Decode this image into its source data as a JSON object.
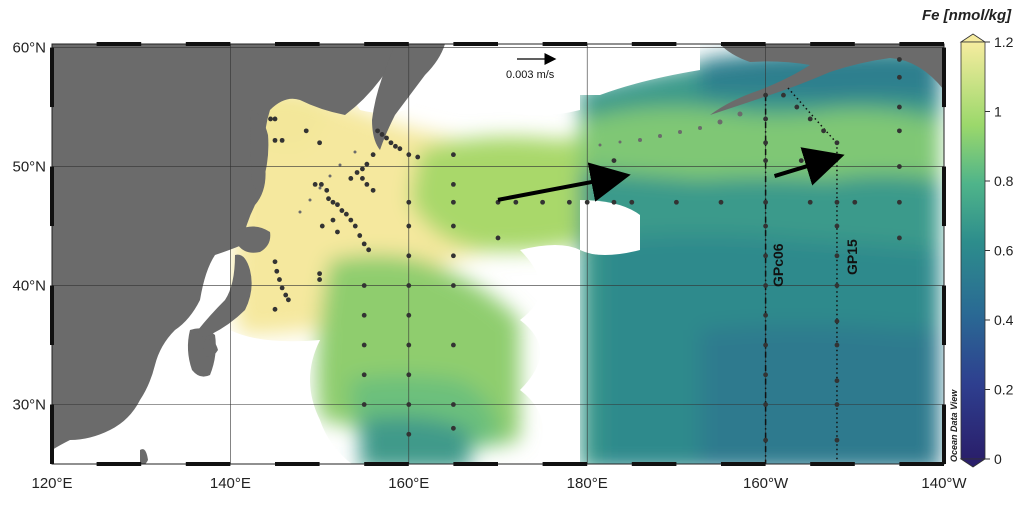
{
  "colors": {
    "land": "#6b6b6b",
    "ocean_blank": "#ffffff",
    "high": "#f5e89e",
    "mid_high": "#a6d868",
    "mid": "#4fb48a",
    "mid_low": "#2f8a8c",
    "low": "#2a5b8e",
    "station": "#333333"
  },
  "map": {
    "lon_ticks": [
      {
        "value": 120,
        "label": "120°E"
      },
      {
        "value": 140,
        "label": "140°E"
      },
      {
        "value": 160,
        "label": "160°E"
      },
      {
        "value": 180,
        "label": "180°E"
      },
      {
        "value": 200,
        "label": "160°W"
      },
      {
        "value": 220,
        "label": "140°W"
      }
    ],
    "lat_ticks": [
      {
        "value": 30,
        "label": "30°N"
      },
      {
        "value": 40,
        "label": "40°N"
      },
      {
        "value": 50,
        "label": "50°N"
      },
      {
        "value": 60,
        "label": "60°N"
      }
    ],
    "scale_arrow_label": "0.003 m/s",
    "watermark": "Ocean Data View"
  },
  "sections": [
    {
      "name": "GPc06",
      "lon": 200
    },
    {
      "name": "GP15",
      "lon": 208
    }
  ],
  "colorbar": {
    "title": "Fe [nmol/kg]",
    "ticks": [
      {
        "value": 0,
        "label": "0"
      },
      {
        "value": 0.2,
        "label": "0.2"
      },
      {
        "value": 0.4,
        "label": "0.4"
      },
      {
        "value": 0.6,
        "label": "0.6"
      },
      {
        "value": 0.8,
        "label": "0.8"
      },
      {
        "value": 1,
        "label": "1"
      },
      {
        "value": 1.2,
        "label": "1.2"
      }
    ],
    "min": 0,
    "max": 1.2
  },
  "arrows": [
    {
      "lon0": 170,
      "lat0": 47.2,
      "lon1": 184,
      "lat1": 49.2
    },
    {
      "lon0": 201,
      "lat0": 49.2,
      "lon1": 208,
      "lat1": 50.8
    }
  ],
  "stations": [
    [
      144.5,
      54
    ],
    [
      145,
      54
    ],
    [
      145,
      52.2
    ],
    [
      145.8,
      52.2
    ],
    [
      148.5,
      53
    ],
    [
      150,
      52
    ],
    [
      149.5,
      48.5
    ],
    [
      150.2,
      48.5
    ],
    [
      150.8,
      48
    ],
    [
      151,
      47.3
    ],
    [
      151.5,
      47
    ],
    [
      152,
      46.8
    ],
    [
      152.5,
      46.3
    ],
    [
      153,
      46
    ],
    [
      153.5,
      45.5
    ],
    [
      154,
      45
    ],
    [
      154.5,
      44.2
    ],
    [
      155,
      43.5
    ],
    [
      155.5,
      43
    ],
    [
      153.5,
      49
    ],
    [
      154.2,
      49.5
    ],
    [
      154.8,
      49
    ],
    [
      155.3,
      48.5
    ],
    [
      156,
      48
    ],
    [
      150.3,
      45
    ],
    [
      151.5,
      45.5
    ],
    [
      152,
      44.5
    ],
    [
      156.5,
      53
    ],
    [
      157,
      52.7
    ],
    [
      157.5,
      52.4
    ],
    [
      158,
      52
    ],
    [
      158.5,
      51.7
    ],
    [
      159,
      51.5
    ],
    [
      160,
      51
    ],
    [
      161,
      50.8
    ],
    [
      156,
      51
    ],
    [
      155.3,
      50.2
    ],
    [
      154.8,
      49.8
    ],
    [
      145,
      42
    ],
    [
      145.2,
      41.2
    ],
    [
      145.5,
      40.5
    ],
    [
      145.8,
      39.8
    ],
    [
      146.2,
      39.2
    ],
    [
      146.5,
      38.8
    ],
    [
      150,
      41
    ],
    [
      150,
      40.5
    ],
    [
      145,
      38
    ],
    [
      160,
      47
    ],
    [
      160,
      45
    ],
    [
      160,
      42.5
    ],
    [
      160,
      40
    ],
    [
      160,
      37.5
    ],
    [
      160,
      35
    ],
    [
      160,
      32.5
    ],
    [
      160,
      30
    ],
    [
      160,
      27.5
    ],
    [
      155,
      40
    ],
    [
      155,
      37.5
    ],
    [
      155,
      35
    ],
    [
      155,
      32.5
    ],
    [
      155,
      30
    ],
    [
      165,
      51
    ],
    [
      165,
      48.5
    ],
    [
      165,
      47
    ],
    [
      165,
      45
    ],
    [
      165,
      42.5
    ],
    [
      165,
      40
    ],
    [
      165,
      35
    ],
    [
      165,
      30
    ],
    [
      165,
      28
    ],
    [
      170,
      47
    ],
    [
      172,
      47
    ],
    [
      175,
      47
    ],
    [
      178,
      47
    ],
    [
      180,
      47
    ],
    [
      183,
      47
    ],
    [
      185,
      47
    ],
    [
      190,
      47
    ],
    [
      195,
      47
    ],
    [
      200,
      47
    ],
    [
      205,
      47
    ],
    [
      208,
      47
    ],
    [
      210,
      47
    ],
    [
      215,
      47
    ],
    [
      170,
      44
    ],
    [
      183,
      50.5
    ],
    [
      200,
      50.5
    ],
    [
      204,
      50.5
    ],
    [
      200,
      56
    ],
    [
      200,
      54
    ],
    [
      200,
      52
    ],
    [
      200,
      45
    ],
    [
      200,
      42.5
    ],
    [
      200,
      40
    ],
    [
      200,
      37.5
    ],
    [
      200,
      35
    ],
    [
      200,
      32.5
    ],
    [
      200,
      30
    ],
    [
      200,
      27
    ],
    [
      208,
      52
    ],
    [
      208,
      45
    ],
    [
      208,
      42.5
    ],
    [
      208,
      40
    ],
    [
      208,
      37
    ],
    [
      208,
      35
    ],
    [
      208,
      32
    ],
    [
      208,
      30
    ],
    [
      208,
      27
    ],
    [
      215,
      59
    ],
    [
      215,
      57.5
    ],
    [
      215,
      55
    ],
    [
      215,
      53
    ],
    [
      215,
      50
    ],
    [
      215,
      44
    ],
    [
      202,
      56
    ],
    [
      203.5,
      55
    ],
    [
      205,
      54
    ],
    [
      206.5,
      53
    ]
  ]
}
